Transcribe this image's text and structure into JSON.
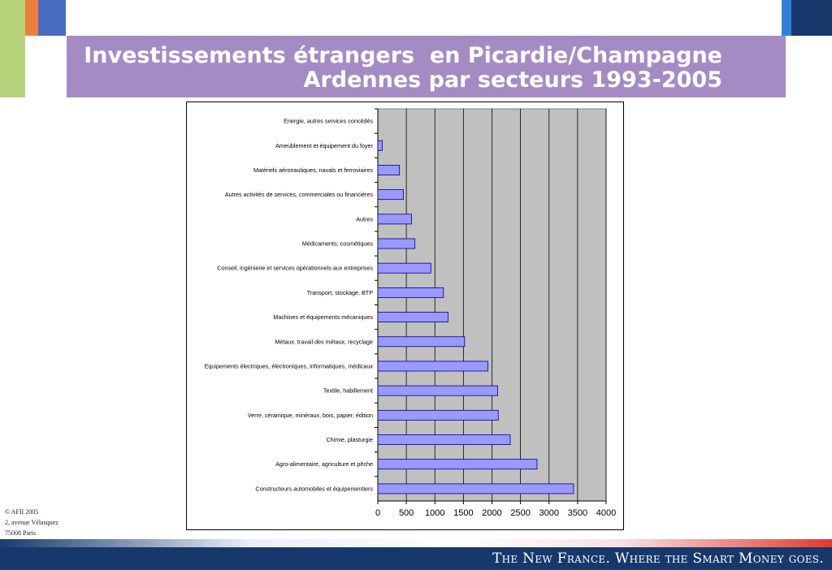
{
  "colors": {
    "title_band": "#a58bc4",
    "bar_fill": "#9999ff",
    "plot_bg": "#c0c0c0",
    "footer": "#17386a"
  },
  "header": {
    "title_line1": "Investissements étrangers  en Picardie/Champagne",
    "title_line2": "Ardennes par secteurs 1993-2005"
  },
  "chart_data": {
    "type": "bar",
    "orientation": "horizontal",
    "categories": [
      "Energie, autres services concédés",
      "Ameublement et équipement du foyer",
      "Matériels aéronautiques, navals et ferroviaires",
      "Autres activités de services, commerciales ou financières",
      "Autres",
      "Médicaments, cosmétiques",
      "Conseil, ingénierie et services opérationnels aux entreprises",
      "Transport, stockage, BTP",
      "Machines et équipements mécaniques",
      "Métaux, travail des métaux, recyclage",
      "Equipements électriques, électroniques, informatiques, médicaux",
      "Textile, habillement",
      "Verre, céramique, minéraux, bois, papier, édition",
      "Chimie, plasturgie",
      "Agro-alimentaire, agriculture et pêche",
      "Constructeurs automobiles et équipementiers"
    ],
    "values": [
      0,
      80,
      380,
      450,
      590,
      650,
      930,
      1150,
      1230,
      1520,
      1930,
      2100,
      2110,
      2320,
      2790,
      3430
    ],
    "xlim": [
      0,
      4000
    ],
    "xticks": [
      "0",
      "500",
      "1000",
      "1500",
      "2000",
      "2500",
      "3000",
      "3500",
      "4000"
    ],
    "grid": true,
    "legend": "none"
  },
  "footer": {
    "copyright": "© AFII 2005",
    "address1": "2, avenue Vélasquez",
    "address2": "75008 Paris",
    "slogan": "The New France. Where the Smart Money goes."
  }
}
